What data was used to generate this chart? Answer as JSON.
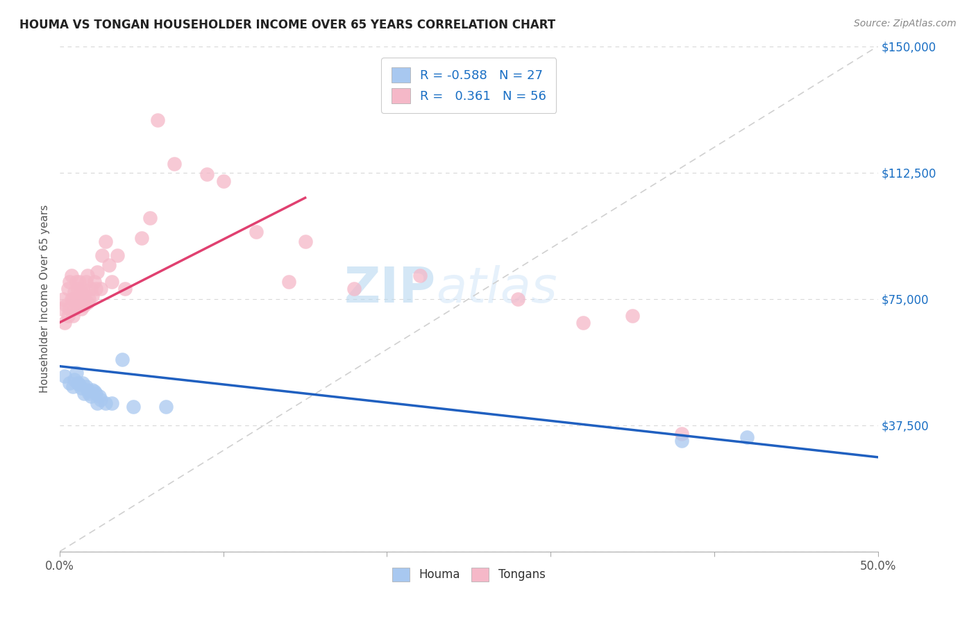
{
  "title": "HOUMA VS TONGAN HOUSEHOLDER INCOME OVER 65 YEARS CORRELATION CHART",
  "source": "Source: ZipAtlas.com",
  "ylabel": "Householder Income Over 65 years",
  "xlim": [
    0,
    0.5
  ],
  "ylim": [
    0,
    150000
  ],
  "yticks": [
    0,
    37500,
    75000,
    112500,
    150000
  ],
  "ytick_labels": [
    "",
    "$37,500",
    "$75,000",
    "$112,500",
    "$150,000"
  ],
  "xticks": [
    0.0,
    0.1,
    0.2,
    0.3,
    0.4,
    0.5
  ],
  "xtick_labels": [
    "0.0%",
    "",
    "",
    "",
    "",
    "50.0%"
  ],
  "houma_R": -0.588,
  "houma_N": 27,
  "tongan_R": 0.361,
  "tongan_N": 56,
  "houma_color": "#a8c8f0",
  "tongan_color": "#f5b8c8",
  "houma_line_color": "#2060c0",
  "tongan_line_color": "#e04070",
  "ref_line_color": "#d0d0d0",
  "background_color": "#ffffff",
  "watermark_zip": "ZIP",
  "watermark_atlas": "atlas",
  "houma_x": [
    0.003,
    0.006,
    0.008,
    0.009,
    0.01,
    0.011,
    0.012,
    0.013,
    0.014,
    0.015,
    0.016,
    0.017,
    0.018,
    0.019,
    0.02,
    0.021,
    0.022,
    0.023,
    0.024,
    0.025,
    0.028,
    0.032,
    0.038,
    0.045,
    0.065,
    0.38,
    0.42
  ],
  "houma_y": [
    52000,
    50000,
    49000,
    51000,
    53000,
    50000,
    49500,
    48500,
    50000,
    47000,
    49000,
    48000,
    47000,
    46000,
    48000,
    47500,
    47000,
    44000,
    46000,
    45000,
    44000,
    44000,
    57000,
    43000,
    43000,
    33000,
    34000
  ],
  "tongan_x": [
    0.001,
    0.002,
    0.003,
    0.004,
    0.005,
    0.005,
    0.006,
    0.006,
    0.007,
    0.007,
    0.008,
    0.008,
    0.009,
    0.009,
    0.01,
    0.01,
    0.011,
    0.011,
    0.012,
    0.012,
    0.013,
    0.013,
    0.014,
    0.015,
    0.015,
    0.016,
    0.017,
    0.017,
    0.018,
    0.019,
    0.02,
    0.021,
    0.022,
    0.023,
    0.025,
    0.026,
    0.028,
    0.03,
    0.032,
    0.035,
    0.04,
    0.05,
    0.055,
    0.06,
    0.07,
    0.09,
    0.1,
    0.12,
    0.14,
    0.15,
    0.18,
    0.22,
    0.28,
    0.32,
    0.35,
    0.38
  ],
  "tongan_y": [
    72000,
    75000,
    68000,
    73000,
    70000,
    78000,
    72000,
    80000,
    75000,
    82000,
    70000,
    75000,
    77000,
    72000,
    75000,
    80000,
    73000,
    78000,
    75000,
    80000,
    72000,
    77000,
    78000,
    73000,
    76000,
    80000,
    74000,
    82000,
    75000,
    78000,
    76000,
    80000,
    78000,
    83000,
    78000,
    88000,
    92000,
    85000,
    80000,
    88000,
    78000,
    93000,
    99000,
    128000,
    115000,
    112000,
    110000,
    95000,
    80000,
    92000,
    78000,
    82000,
    75000,
    68000,
    70000,
    35000
  ],
  "houma_line_x": [
    0.0,
    0.5
  ],
  "houma_line_y": [
    55000,
    28000
  ],
  "tongan_line_x": [
    0.0,
    0.15
  ],
  "tongan_line_y": [
    68000,
    105000
  ]
}
